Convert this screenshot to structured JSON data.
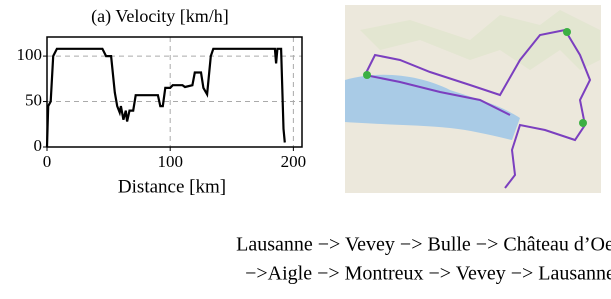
{
  "chart_data": {
    "type": "line",
    "title": "(a) Velocity [km/h]",
    "x_label": "Distance [km]",
    "x": [
      0,
      1,
      3,
      5,
      8,
      45,
      48,
      52,
      55,
      57,
      59,
      60,
      62,
      64,
      65,
      67,
      70,
      72,
      90,
      92,
      94,
      96,
      100,
      102,
      110,
      112,
      118,
      120,
      125,
      127,
      130,
      133,
      135,
      185,
      186,
      187,
      190,
      192,
      193
    ],
    "values": [
      0,
      45,
      50,
      100,
      108,
      108,
      100,
      100,
      60,
      45,
      38,
      45,
      30,
      40,
      28,
      40,
      40,
      57,
      57,
      45,
      45,
      65,
      65,
      68,
      68,
      66,
      68,
      82,
      82,
      65,
      58,
      100,
      108,
      108,
      92,
      108,
      108,
      20,
      5
    ],
    "color": "#000000",
    "xlim": [
      0,
      207
    ],
    "ylim": [
      0,
      121
    ],
    "xticks": [
      0,
      100,
      200
    ],
    "yticks": [
      0,
      50,
      100
    ],
    "grid": true
  },
  "caption": {
    "lines": [
      "Lausanne −> Vevey −> Bulle −> Château d’Oex",
      "−>Aigle  −> Montreux −> Vevey −> Lausanne"
    ]
  }
}
